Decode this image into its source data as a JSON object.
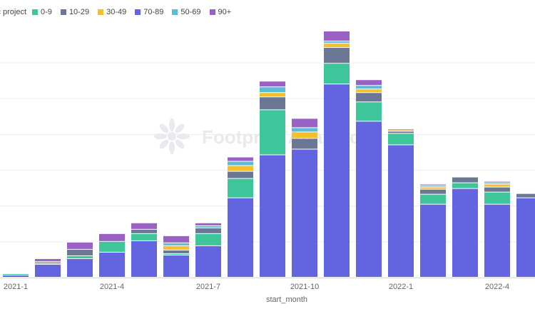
{
  "legend": {
    "title": "ic project",
    "items": [
      "0-9",
      "10-29",
      "30-49",
      "70-89",
      "50-69",
      "90+"
    ]
  },
  "watermark": "Footprint Analytics",
  "colors": {
    "0-9": "#3fc59a",
    "10-29": "#6b7794",
    "30-49": "#f2c02c",
    "70-89": "#6264e0",
    "50-69": "#5bbcd6",
    "90+": "#9a61c4",
    "grid": "#eceef2",
    "axis_text": "#666666"
  },
  "chart_data": {
    "type": "bar",
    "stacked": true,
    "xlabel": "start_month",
    "ylabel": "",
    "ylim": [
      0,
      348
    ],
    "grid": true,
    "legend_position": "top-left",
    "categories": [
      "2021-1",
      "2021-2",
      "2021-3",
      "2021-4",
      "2021-5",
      "2021-6",
      "2021-7",
      "2021-8",
      "2021-9",
      "2021-10",
      "2021-11",
      "2021-12",
      "2022-1",
      "2022-2",
      "2022-3",
      "2022-4",
      "2022-5"
    ],
    "tick_labels": [
      "2021-1",
      "2021-4",
      "2021-7",
      "2021-10",
      "2022-1",
      "2022-4"
    ],
    "series": [
      {
        "name": "70-89",
        "values": [
          3,
          18,
          26,
          35,
          51,
          31,
          44,
          111,
          171,
          179,
          270,
          218,
          185,
          102,
          124,
          102,
          111
        ]
      },
      {
        "name": "0-9",
        "values": [
          2,
          2,
          4,
          15,
          10,
          2,
          17,
          27,
          63,
          0,
          29,
          27,
          16,
          14,
          8,
          17,
          0
        ]
      },
      {
        "name": "10-29",
        "values": [
          0,
          2,
          9,
          0,
          6,
          5,
          8,
          10,
          18,
          15,
          22,
          13,
          3,
          7,
          8,
          7,
          6
        ]
      },
      {
        "name": "30-49",
        "values": [
          0,
          0,
          0,
          0,
          0,
          6,
          0,
          8,
          6,
          9,
          6,
          5,
          2,
          3,
          0,
          4,
          0
        ]
      },
      {
        "name": "50-69",
        "values": [
          0,
          0,
          0,
          0,
          0,
          4,
          3,
          6,
          8,
          6,
          3,
          5,
          0,
          2,
          0,
          2,
          0
        ]
      },
      {
        "name": "90+",
        "values": [
          0,
          4,
          10,
          11,
          9,
          10,
          4,
          6,
          8,
          13,
          14,
          8,
          1,
          2,
          0,
          2,
          0
        ]
      }
    ]
  }
}
